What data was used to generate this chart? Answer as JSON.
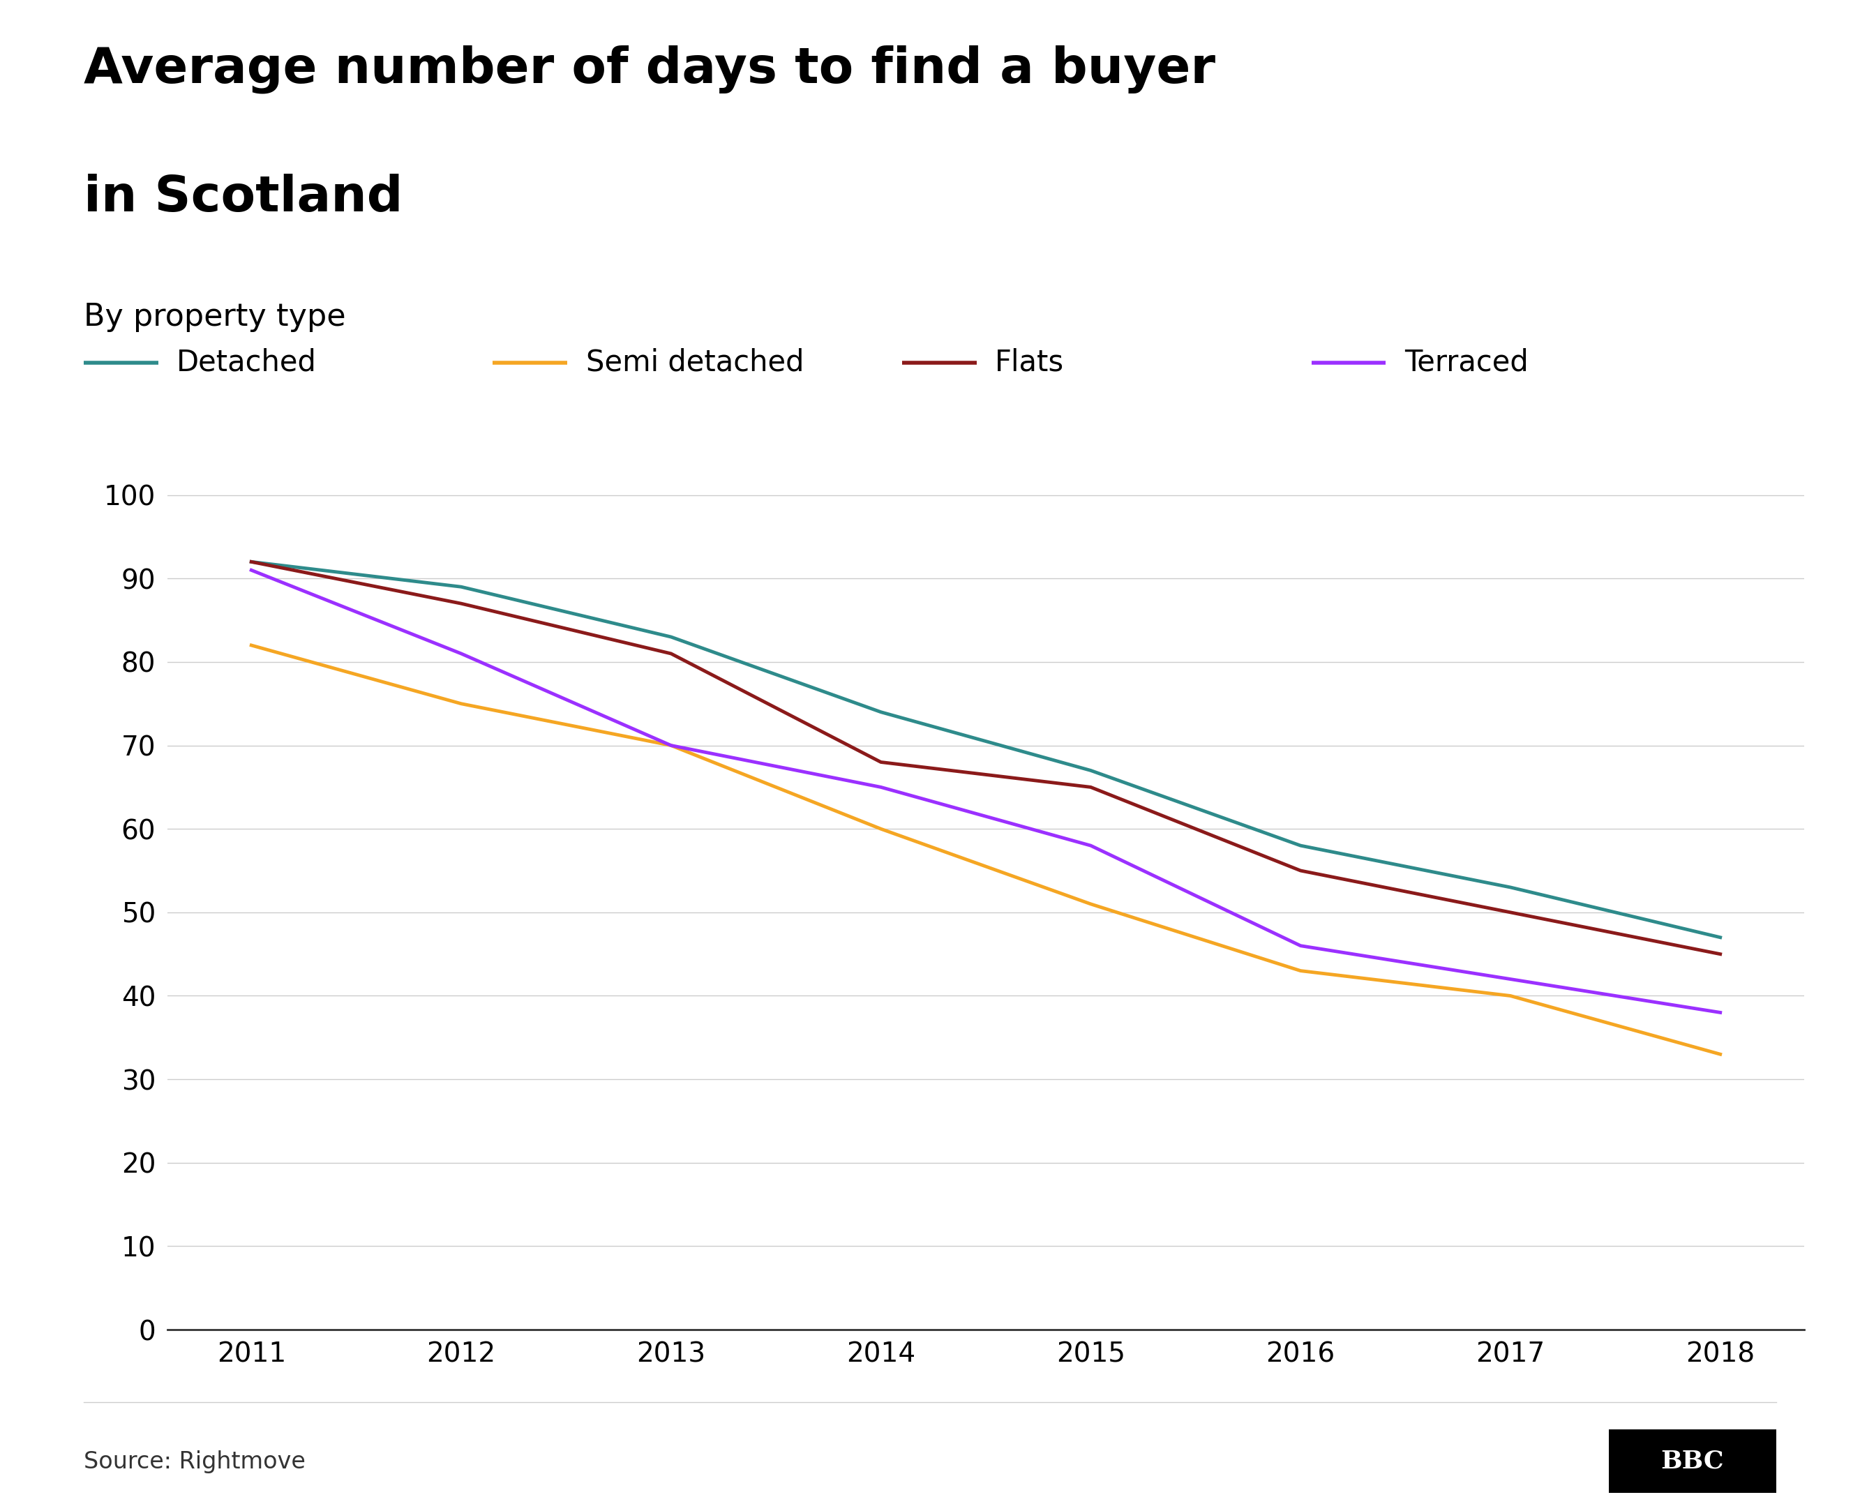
{
  "title_line1": "Average number of days to find a buyer",
  "title_line2": "in Scotland",
  "subtitle": "By property type",
  "source": "Source: Rightmove",
  "bbc_logo": "BBC",
  "years": [
    2011,
    2012,
    2013,
    2014,
    2015,
    2016,
    2017,
    2018
  ],
  "series": [
    {
      "name": "Detached",
      "values": [
        92,
        89,
        83,
        74,
        67,
        58,
        53,
        47
      ],
      "color": "#2e8b8b"
    },
    {
      "name": "Semi detached",
      "values": [
        82,
        75,
        70,
        60,
        51,
        43,
        40,
        33
      ],
      "color": "#f5a623"
    },
    {
      "name": "Flats",
      "values": [
        92,
        87,
        81,
        68,
        65,
        55,
        50,
        45
      ],
      "color": "#8b1a1a"
    },
    {
      "name": "Terraced",
      "values": [
        91,
        81,
        70,
        65,
        58,
        46,
        42,
        38
      ],
      "color": "#9b30ff"
    }
  ],
  "ylim": [
    0,
    105
  ],
  "yticks": [
    0,
    10,
    20,
    30,
    40,
    50,
    60,
    70,
    80,
    90,
    100
  ],
  "xlim": [
    2010.6,
    2018.4
  ],
  "background_color": "#ffffff",
  "grid_color": "#cccccc",
  "title_fontsize": 52,
  "subtitle_fontsize": 32,
  "legend_fontsize": 30,
  "tick_fontsize": 28,
  "source_fontsize": 24,
  "line_width": 3.5
}
